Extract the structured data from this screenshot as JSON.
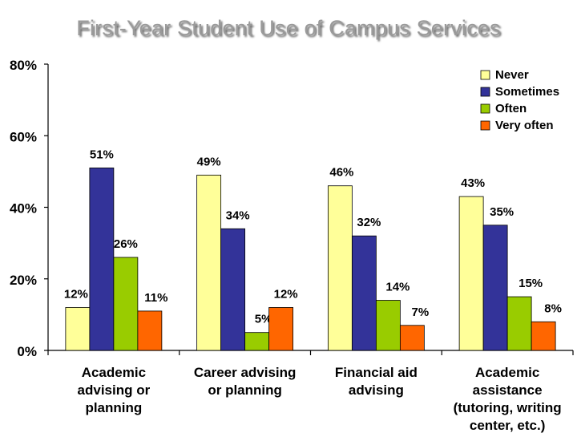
{
  "page": {
    "title": "First-Year Student Use of Campus Services"
  },
  "chart_data": {
    "type": "bar",
    "title": "First-Year Student Use of Campus Services",
    "xlabel": "",
    "ylabel": "",
    "ylim": [
      0,
      80
    ],
    "yticks": [
      "0%",
      "20%",
      "40%",
      "60%",
      "80%"
    ],
    "ytick_values": [
      0,
      20,
      40,
      60,
      80
    ],
    "grid": false,
    "legend_position": "top-right",
    "categories": [
      [
        "Academic",
        "advising or",
        "planning"
      ],
      [
        "Career advising",
        "or planning"
      ],
      [
        "Financial aid",
        "advising"
      ],
      [
        "Academic",
        "assistance",
        "(tutoring, writing",
        "center, etc.)"
      ]
    ],
    "series": [
      {
        "name": "Never",
        "color": "#FFFF99",
        "values": [
          12,
          49,
          46,
          43
        ],
        "labels": [
          "12%",
          "49%",
          "46%",
          "43%"
        ]
      },
      {
        "name": "Sometimes",
        "color": "#333399",
        "values": [
          51,
          34,
          32,
          35
        ],
        "labels": [
          "51%",
          "34%",
          "32%",
          "35%"
        ]
      },
      {
        "name": "Often",
        "color": "#99CC00",
        "values": [
          26,
          5,
          14,
          15
        ],
        "labels": [
          "26%",
          "5%",
          "14%",
          "15%"
        ]
      },
      {
        "name": "Very often",
        "color": "#FF6600",
        "values": [
          11,
          12,
          7,
          8
        ],
        "labels": [
          "11%",
          "12%",
          "7%",
          "8%"
        ]
      }
    ]
  }
}
